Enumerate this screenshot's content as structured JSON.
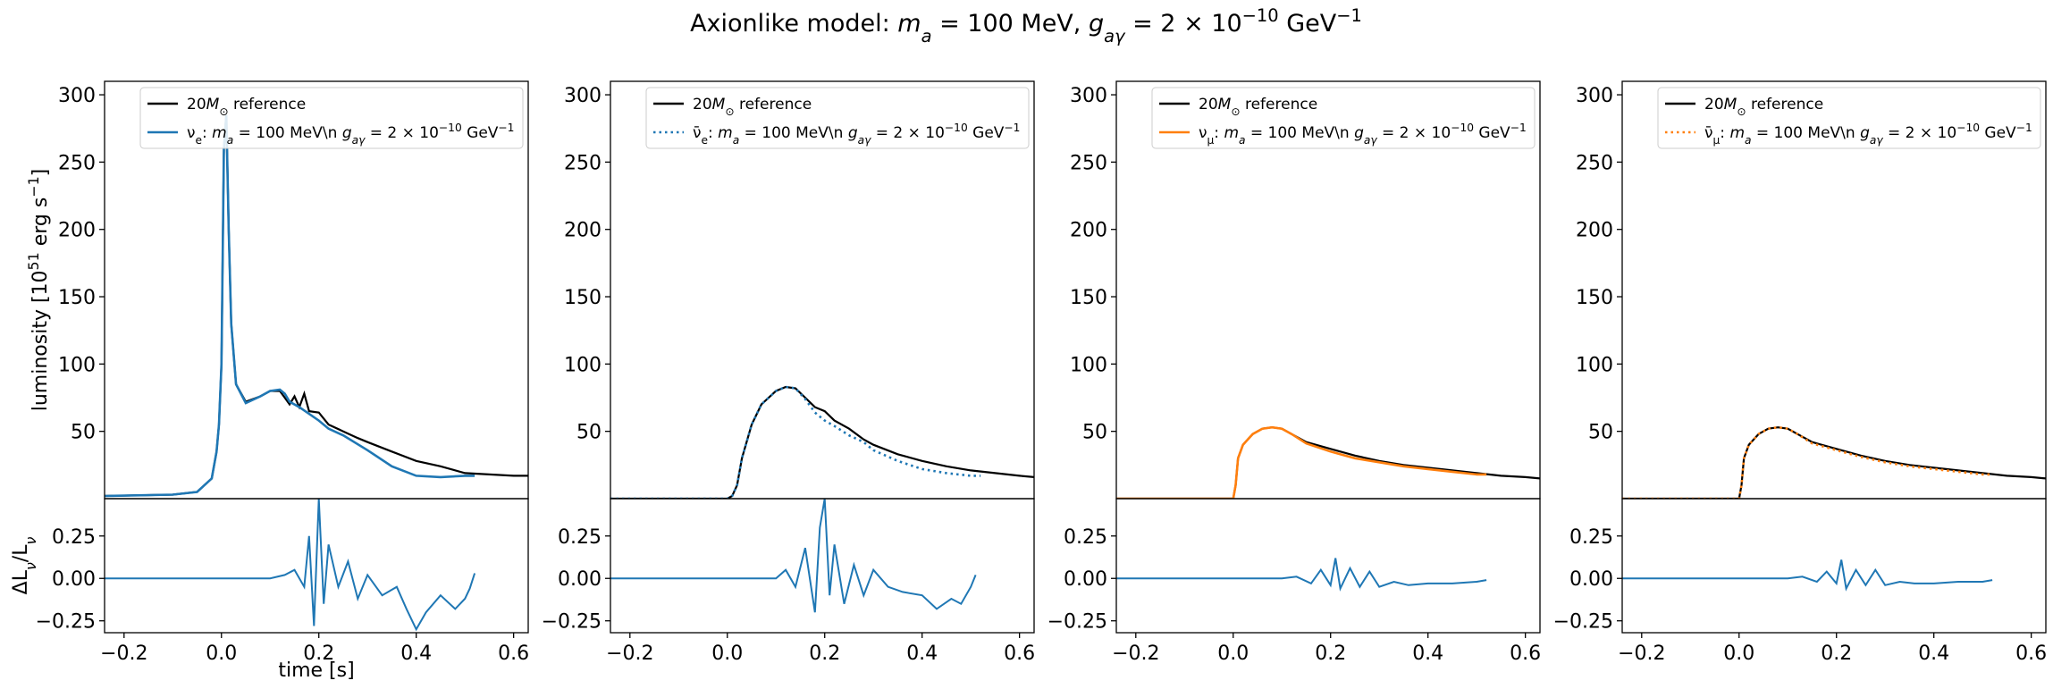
{
  "figure": {
    "title": "Axionlike model: m_a = 100 MeV, g_aγ = 2 × 10^−10 GeV^−1",
    "title_parts": [
      "Axionlike model: ",
      "m",
      "a",
      " = 100 MeV, ",
      "g",
      "aγ",
      " = 2 × 10",
      "−10",
      " GeV",
      "−1"
    ]
  },
  "chart_data": [
    {
      "type": "line",
      "panel": "nu_e",
      "xlim": [
        -0.24,
        0.63
      ],
      "ylim": [
        0,
        310
      ],
      "xticks": [
        -0.2,
        0.0,
        0.2,
        0.4,
        0.6
      ],
      "xtick_labels": [
        "−0.2",
        "0.0",
        "0.2",
        "0.4",
        "0.6"
      ],
      "yticks": [
        50,
        100,
        150,
        200,
        250,
        300
      ],
      "ytick_labels": [
        "50",
        "100",
        "150",
        "200",
        "250",
        "300"
      ],
      "ylabel": "luminosity [10^51 erg s^−1]",
      "ylabel_parts": [
        "luminosity [10",
        "51",
        " erg s",
        "−1",
        "]"
      ],
      "xlabel": "time [s]",
      "legend": {
        "loc": "upper right",
        "entries": [
          {
            "label_parts": [
              "20",
              "M",
              "⊙",
              " reference"
            ],
            "color": "#000000",
            "dash": "solid"
          },
          {
            "label_parts": [
              "ν",
              "e",
              ": ",
              "m",
              "a",
              " = 100 MeV\\n     ",
              "g",
              "aγ",
              " = 2 × 10",
              "−10",
              " GeV",
              "−1"
            ],
            "color": "#1f77b4",
            "dash": "solid"
          }
        ]
      },
      "series": [
        {
          "name": "20M⊙ reference",
          "color": "#000000",
          "dash": "solid",
          "x": [
            -0.24,
            -0.1,
            -0.05,
            -0.02,
            -0.01,
            -0.005,
            0.0,
            0.005,
            0.01,
            0.015,
            0.02,
            0.03,
            0.05,
            0.08,
            0.1,
            0.12,
            0.13,
            0.14,
            0.15,
            0.16,
            0.17,
            0.18,
            0.2,
            0.22,
            0.25,
            0.28,
            0.3,
            0.35,
            0.4,
            0.45,
            0.5,
            0.55,
            0.6,
            0.63
          ],
          "y": [
            2,
            3,
            5,
            15,
            35,
            55,
            100,
            260,
            285,
            200,
            130,
            85,
            72,
            76,
            80,
            80,
            75,
            70,
            76,
            68,
            78,
            65,
            64,
            55,
            50,
            45,
            42,
            35,
            28,
            24,
            19,
            18,
            17,
            17
          ]
        },
        {
          "name": "ν_e",
          "color": "#1f77b4",
          "dash": "solid",
          "x": [
            -0.24,
            -0.1,
            -0.05,
            -0.02,
            -0.01,
            -0.005,
            0.0,
            0.005,
            0.01,
            0.015,
            0.02,
            0.03,
            0.05,
            0.08,
            0.1,
            0.12,
            0.13,
            0.14,
            0.16,
            0.18,
            0.2,
            0.22,
            0.25,
            0.3,
            0.35,
            0.4,
            0.45,
            0.5,
            0.52
          ],
          "y": [
            2,
            3,
            5,
            15,
            35,
            55,
            100,
            260,
            285,
            200,
            130,
            85,
            71,
            76,
            80,
            81,
            78,
            72,
            68,
            63,
            58,
            52,
            47,
            36,
            24,
            17,
            16,
            17,
            17
          ]
        }
      ],
      "ratio": {
        "ylabel": "ΔL_ν/L_ν",
        "ylabel_parts": [
          "ΔL",
          "ν",
          "/L",
          "ν"
        ],
        "ylim": [
          -0.32,
          0.47
        ],
        "yticks": [
          -0.25,
          0.0,
          0.25
        ],
        "ytick_labels": [
          "−0.25",
          "0.00",
          "0.25"
        ],
        "color": "#1f77b4",
        "x": [
          -0.24,
          0.0,
          0.1,
          0.13,
          0.15,
          0.17,
          0.18,
          0.19,
          0.2,
          0.21,
          0.22,
          0.24,
          0.26,
          0.28,
          0.3,
          0.33,
          0.36,
          0.38,
          0.4,
          0.42,
          0.45,
          0.48,
          0.5,
          0.51,
          0.52
        ],
        "y": [
          0.0,
          0.0,
          0.0,
          0.02,
          0.05,
          -0.05,
          0.25,
          -0.28,
          0.47,
          -0.15,
          0.2,
          -0.05,
          0.1,
          -0.12,
          0.02,
          -0.1,
          -0.05,
          -0.18,
          -0.3,
          -0.2,
          -0.1,
          -0.18,
          -0.12,
          -0.06,
          0.03
        ]
      }
    },
    {
      "type": "line",
      "panel": "anti_nu_e",
      "xlim": [
        -0.24,
        0.63
      ],
      "ylim": [
        0,
        310
      ],
      "xticks": [
        -0.2,
        0.0,
        0.2,
        0.4,
        0.6
      ],
      "xtick_labels": [
        "−0.2",
        "0.0",
        "0.2",
        "0.4",
        "0.6"
      ],
      "yticks": [
        50,
        100,
        150,
        200,
        250,
        300
      ],
      "ytick_labels": [
        "50",
        "100",
        "150",
        "200",
        "250",
        "300"
      ],
      "legend": {
        "loc": "upper right",
        "entries": [
          {
            "label_parts": [
              "20",
              "M",
              "⊙",
              " reference"
            ],
            "color": "#000000",
            "dash": "solid"
          },
          {
            "label_parts": [
              "ν̄",
              "e",
              ": ",
              "m",
              "a",
              " = 100 MeV\\n     ",
              "g",
              "aγ",
              " = 2 × 10",
              "−10",
              " GeV",
              "−1"
            ],
            "color": "#1f77b4",
            "dash": "dotted"
          }
        ]
      },
      "series": [
        {
          "name": "20M⊙ reference",
          "color": "#000000",
          "dash": "solid",
          "x": [
            -0.24,
            0.0,
            0.01,
            0.02,
            0.03,
            0.05,
            0.07,
            0.1,
            0.12,
            0.14,
            0.16,
            0.18,
            0.2,
            0.22,
            0.25,
            0.28,
            0.3,
            0.35,
            0.4,
            0.45,
            0.5,
            0.55,
            0.6,
            0.63
          ],
          "y": [
            0,
            0,
            2,
            10,
            30,
            55,
            70,
            80,
            83,
            82,
            75,
            68,
            65,
            58,
            52,
            44,
            40,
            33,
            28,
            24,
            21,
            19,
            17,
            16
          ]
        },
        {
          "name": "ν̄_e",
          "color": "#1f77b4",
          "dash": "dotted",
          "x": [
            -0.24,
            0.0,
            0.01,
            0.02,
            0.03,
            0.05,
            0.07,
            0.1,
            0.12,
            0.14,
            0.16,
            0.18,
            0.2,
            0.22,
            0.25,
            0.28,
            0.3,
            0.35,
            0.4,
            0.45,
            0.5,
            0.52
          ],
          "y": [
            0,
            0,
            2,
            10,
            30,
            55,
            70,
            80,
            83,
            82,
            74,
            64,
            58,
            54,
            47,
            42,
            36,
            28,
            22,
            19,
            17,
            17
          ]
        }
      ],
      "ratio": {
        "ylim": [
          -0.32,
          0.47
        ],
        "yticks": [
          -0.25,
          0.0,
          0.25
        ],
        "ytick_labels": [
          "−0.25",
          "0.00",
          "0.25"
        ],
        "color": "#1f77b4",
        "x": [
          -0.24,
          0.0,
          0.1,
          0.12,
          0.14,
          0.16,
          0.18,
          0.19,
          0.2,
          0.21,
          0.22,
          0.24,
          0.26,
          0.28,
          0.3,
          0.33,
          0.36,
          0.4,
          0.43,
          0.46,
          0.48,
          0.5,
          0.51
        ],
        "y": [
          0.0,
          0.0,
          0.0,
          0.05,
          -0.05,
          0.18,
          -0.2,
          0.3,
          0.47,
          -0.1,
          0.2,
          -0.15,
          0.08,
          -0.1,
          0.05,
          -0.05,
          -0.08,
          -0.1,
          -0.18,
          -0.12,
          -0.15,
          -0.05,
          0.02
        ]
      }
    },
    {
      "type": "line",
      "panel": "nu_mu",
      "xlim": [
        -0.24,
        0.63
      ],
      "ylim": [
        0,
        310
      ],
      "xticks": [
        -0.2,
        0.0,
        0.2,
        0.4,
        0.6
      ],
      "xtick_labels": [
        "−0.2",
        "0.0",
        "0.2",
        "0.4",
        "0.6"
      ],
      "yticks": [
        50,
        100,
        150,
        200,
        250,
        300
      ],
      "ytick_labels": [
        "50",
        "100",
        "150",
        "200",
        "250",
        "300"
      ],
      "legend": {
        "loc": "upper right",
        "entries": [
          {
            "label_parts": [
              "20",
              "M",
              "⊙",
              " reference"
            ],
            "color": "#000000",
            "dash": "solid"
          },
          {
            "label_parts": [
              "ν",
              "μ",
              ": ",
              "m",
              "a",
              " = 100 MeV\\n     ",
              "g",
              "aγ",
              " = 2 × 10",
              "−10",
              " GeV",
              "−1"
            ],
            "color": "#ff7f0e",
            "dash": "solid"
          }
        ]
      },
      "series": [
        {
          "name": "20M⊙ reference",
          "color": "#000000",
          "dash": "solid",
          "x": [
            -0.24,
            0.0,
            0.005,
            0.01,
            0.02,
            0.04,
            0.06,
            0.08,
            0.1,
            0.12,
            0.15,
            0.2,
            0.25,
            0.3,
            0.35,
            0.4,
            0.45,
            0.5,
            0.55,
            0.6,
            0.63
          ],
          "y": [
            0,
            0,
            10,
            30,
            40,
            48,
            52,
            53,
            52,
            48,
            42,
            37,
            32,
            28,
            25,
            23,
            21,
            19,
            17,
            16,
            15
          ]
        },
        {
          "name": "ν_μ",
          "color": "#ff7f0e",
          "dash": "solid",
          "x": [
            -0.24,
            0.0,
            0.005,
            0.01,
            0.02,
            0.04,
            0.06,
            0.08,
            0.1,
            0.12,
            0.15,
            0.2,
            0.25,
            0.3,
            0.35,
            0.4,
            0.45,
            0.5,
            0.52
          ],
          "y": [
            0,
            0,
            10,
            30,
            40,
            48,
            52,
            53,
            52,
            48,
            41,
            35,
            30,
            27,
            24,
            22,
            20,
            18,
            18
          ]
        }
      ],
      "ratio": {
        "ylim": [
          -0.32,
          0.47
        ],
        "yticks": [
          -0.25,
          0.0,
          0.25
        ],
        "ytick_labels": [
          "−0.25",
          "0.00",
          "0.25"
        ],
        "color": "#1f77b4",
        "x": [
          -0.24,
          0.0,
          0.1,
          0.13,
          0.16,
          0.18,
          0.2,
          0.21,
          0.22,
          0.24,
          0.26,
          0.28,
          0.3,
          0.33,
          0.36,
          0.4,
          0.45,
          0.5,
          0.52
        ],
        "y": [
          0.0,
          0.0,
          0.0,
          0.01,
          -0.03,
          0.05,
          -0.04,
          0.12,
          -0.06,
          0.06,
          -0.05,
          0.04,
          -0.05,
          -0.02,
          -0.04,
          -0.03,
          -0.03,
          -0.02,
          -0.01
        ]
      }
    },
    {
      "type": "line",
      "panel": "anti_nu_mu",
      "xlim": [
        -0.24,
        0.63
      ],
      "ylim": [
        0,
        310
      ],
      "xticks": [
        -0.2,
        0.0,
        0.2,
        0.4,
        0.6
      ],
      "xtick_labels": [
        "−0.2",
        "0.0",
        "0.2",
        "0.4",
        "0.6"
      ],
      "yticks": [
        50,
        100,
        150,
        200,
        250,
        300
      ],
      "ytick_labels": [
        "50",
        "100",
        "150",
        "200",
        "250",
        "300"
      ],
      "legend": {
        "loc": "upper right",
        "entries": [
          {
            "label_parts": [
              "20",
              "M",
              "⊙",
              " reference"
            ],
            "color": "#000000",
            "dash": "solid"
          },
          {
            "label_parts": [
              "ν̄",
              "μ",
              ": ",
              "m",
              "a",
              " = 100 MeV\\n     ",
              "g",
              "aγ",
              " = 2 × 10",
              "−10",
              " GeV",
              "−1"
            ],
            "color": "#ff7f0e",
            "dash": "dotted"
          }
        ]
      },
      "series": [
        {
          "name": "20M⊙ reference",
          "color": "#000000",
          "dash": "solid",
          "x": [
            -0.24,
            0.0,
            0.005,
            0.01,
            0.02,
            0.04,
            0.06,
            0.08,
            0.1,
            0.12,
            0.15,
            0.2,
            0.25,
            0.3,
            0.35,
            0.4,
            0.45,
            0.5,
            0.55,
            0.6,
            0.63
          ],
          "y": [
            0,
            0,
            10,
            30,
            40,
            48,
            52,
            53,
            52,
            48,
            42,
            37,
            32,
            28,
            25,
            23,
            21,
            19,
            17,
            16,
            15
          ]
        },
        {
          "name": "ν̄_μ",
          "color": "#ff7f0e",
          "dash": "dotted",
          "x": [
            -0.24,
            0.0,
            0.005,
            0.01,
            0.02,
            0.04,
            0.06,
            0.08,
            0.1,
            0.12,
            0.15,
            0.2,
            0.25,
            0.3,
            0.35,
            0.4,
            0.45,
            0.5,
            0.52
          ],
          "y": [
            0,
            0,
            10,
            30,
            40,
            48,
            52,
            53,
            52,
            48,
            41,
            36,
            31,
            27,
            24,
            22,
            20,
            18,
            18
          ]
        }
      ],
      "ratio": {
        "ylim": [
          -0.32,
          0.47
        ],
        "yticks": [
          -0.25,
          0.0,
          0.25
        ],
        "ytick_labels": [
          "−0.25",
          "0.00",
          "0.25"
        ],
        "color": "#1f77b4",
        "x": [
          -0.24,
          0.0,
          0.1,
          0.13,
          0.16,
          0.18,
          0.2,
          0.21,
          0.22,
          0.24,
          0.26,
          0.28,
          0.3,
          0.33,
          0.36,
          0.4,
          0.45,
          0.5,
          0.52
        ],
        "y": [
          0.0,
          0.0,
          0.0,
          0.01,
          -0.02,
          0.04,
          -0.03,
          0.11,
          -0.06,
          0.05,
          -0.04,
          0.05,
          -0.04,
          -0.02,
          -0.03,
          -0.03,
          -0.02,
          -0.02,
          -0.01
        ]
      }
    }
  ]
}
